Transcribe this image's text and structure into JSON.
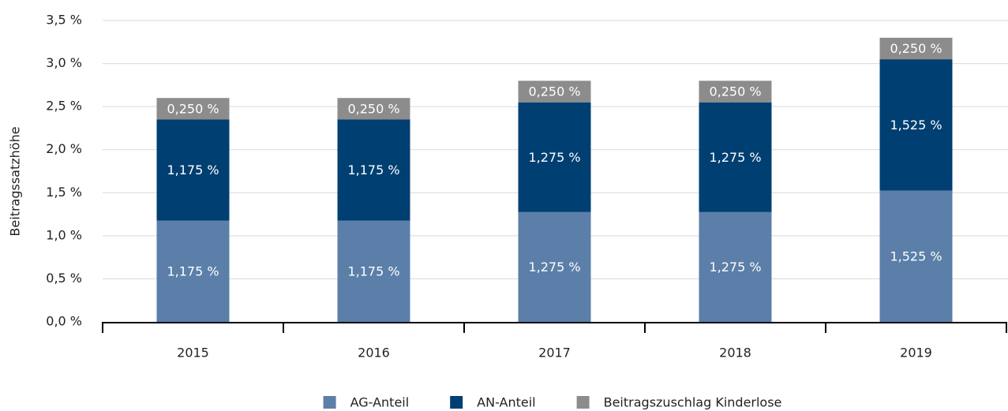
{
  "chart_data": {
    "type": "stacked_bar",
    "y_label": "Beitragssatzhöhe",
    "categories": [
      "2015",
      "2016",
      "2017",
      "2018",
      "2019"
    ],
    "series": [
      {
        "name": "AG-Anteil",
        "color": "#5b7fa9",
        "values": [
          1.175,
          1.175,
          1.275,
          1.275,
          1.525
        ],
        "value_labels": [
          "1,175 %",
          "1,175 %",
          "1,275 %",
          "1,275 %",
          "1,525 %"
        ]
      },
      {
        "name": "AN-Anteil",
        "color": "#003f72",
        "values": [
          1.175,
          1.175,
          1.275,
          1.275,
          1.525
        ],
        "value_labels": [
          "1,175 %",
          "1,175 %",
          "1,275 %",
          "1,275 %",
          "1,525 %"
        ]
      },
      {
        "name": "Beitragszuschlag Kinderlose",
        "color": "#8c8c8c",
        "values": [
          0.25,
          0.25,
          0.25,
          0.25,
          0.25
        ],
        "value_labels": [
          "0,250 %",
          "0,250 %",
          "0,250 %",
          "0,250 %",
          "0,250 %"
        ]
      }
    ],
    "ylim": [
      0,
      3.5
    ],
    "yticks": [
      {
        "value": 0,
        "label": "0,0 %"
      },
      {
        "value": 0.5,
        "label": "0,5 %"
      },
      {
        "value": 1,
        "label": "1,0 %"
      },
      {
        "value": 1.5,
        "label": "1,5 %"
      },
      {
        "value": 2,
        "label": "2,0 %"
      },
      {
        "value": 2.5,
        "label": "2,5 %"
      },
      {
        "value": 3,
        "label": "3,0 %"
      },
      {
        "value": 3.5,
        "label": "3,5 %"
      }
    ],
    "grid": true,
    "legend": "bottom"
  }
}
